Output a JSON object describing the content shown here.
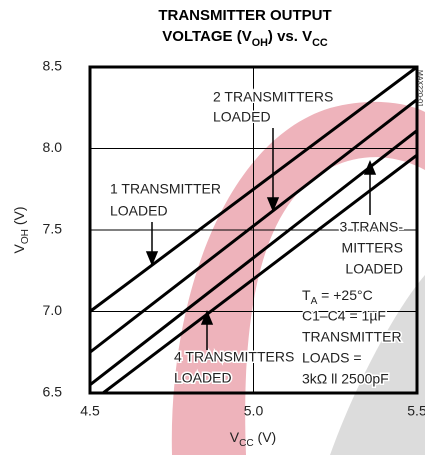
{
  "chart_data": {
    "type": "line",
    "title": [
      "TRANSMITTER OUTPUT",
      [
        {
          "text": "VOLTAGE (V"
        },
        {
          "text": "OH",
          "sub": true
        },
        {
          "text": ") vs. V"
        },
        {
          "text": "CC",
          "sub": true
        }
      ]
    ],
    "x_label": [
      {
        "text": "V"
      },
      {
        "text": "CC",
        "sub": true
      },
      {
        "text": " (V)"
      }
    ],
    "y_label": [
      {
        "text": "V"
      },
      {
        "text": "OH",
        "sub": true
      },
      {
        "text": " (V)"
      }
    ],
    "figure_id": "MAX220-01",
    "xlim": [
      4.5,
      5.5
    ],
    "ylim": [
      6.5,
      8.5
    ],
    "xticks": [
      4.5,
      {
        "value": 5,
        "label": "5.0"
      },
      5.5
    ],
    "yticks": [
      6.5,
      {
        "value": 7,
        "label": "7.0"
      },
      7.5,
      {
        "value": 8,
        "label": "8.0"
      },
      8.5
    ],
    "grid": true,
    "series": [
      {
        "color": "#000000",
        "x": [
          4.5,
          5.5
        ],
        "values": [
          7.0,
          8.5
        ]
      },
      {
        "color": "#000000",
        "x": [
          4.5,
          5.5
        ],
        "values": [
          6.75,
          8.3
        ]
      },
      {
        "color": "#000000",
        "x": [
          4.5,
          5.5
        ],
        "values": [
          6.55,
          8.11
        ]
      },
      {
        "color": "#000000",
        "x": [
          4.54,
          5.5
        ],
        "values": [
          6.5,
          7.96
        ]
      }
    ],
    "annotations": [
      {
        "lines": [
          "1 TRANSMITTER",
          "LOADED"
        ]
      },
      {
        "lines": [
          "2 TRANSMITTERS",
          "LOADED"
        ]
      },
      {
        "lines": [
          "3 TRANS-",
          "MITTERS",
          "LOADED"
        ]
      },
      {
        "lines": [
          "4 TRANSMITTERS",
          "LOADED"
        ]
      },
      {
        "lines": [
          [
            {
              "text": "T"
            },
            {
              "text": "A",
              "sub": true
            },
            {
              "text": " = +25°C"
            }
          ],
          "C1–C4 = 1µF",
          "TRANSMITTER",
          "LOADS =",
          "3kΩ ll 2500pF"
        ]
      }
    ]
  }
}
